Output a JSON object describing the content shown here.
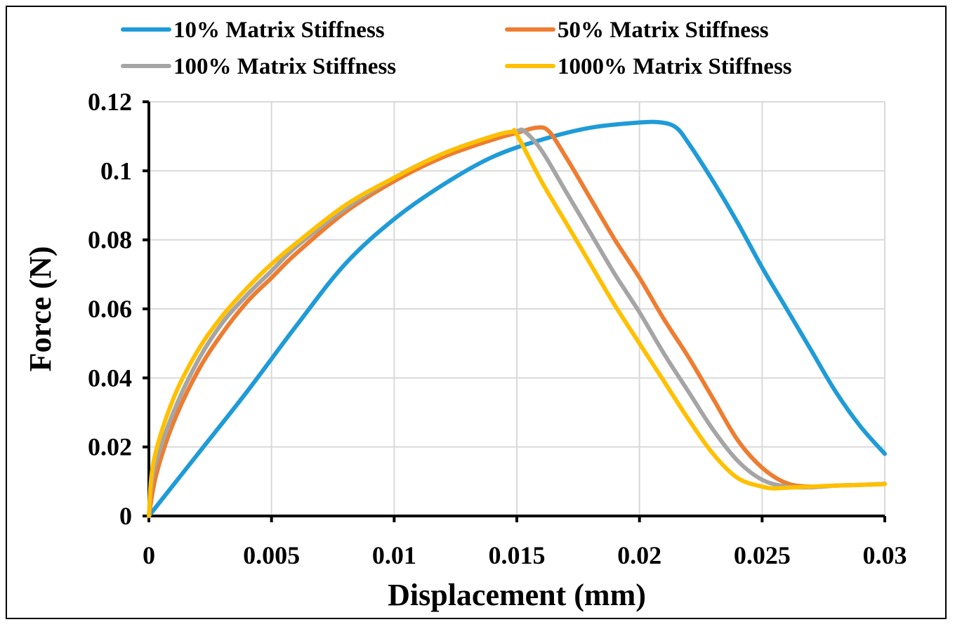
{
  "chart_data": {
    "type": "line",
    "title": "",
    "xlabel": "Displacement (mm)",
    "ylabel": "Force (N)",
    "xlim": [
      0,
      0.03
    ],
    "ylim": [
      0,
      0.12
    ],
    "x_ticks": [
      0,
      0.005,
      0.01,
      0.015,
      0.02,
      0.025,
      0.03
    ],
    "x_tick_labels": [
      "0",
      "0.005",
      "0.01",
      "0.015",
      "0.02",
      "0.025",
      "0.03"
    ],
    "y_ticks": [
      0,
      0.02,
      0.04,
      0.06,
      0.08,
      0.1,
      0.12
    ],
    "y_tick_labels": [
      "0",
      "0.02",
      "0.04",
      "0.06",
      "0.08",
      "0.1",
      "0.12"
    ],
    "grid": true,
    "legend_position": "top",
    "series": [
      {
        "name": "10% Matrix Stiffness",
        "color": "#1f9bd7",
        "x": [
          0,
          0.002,
          0.004,
          0.006,
          0.008,
          0.01,
          0.012,
          0.014,
          0.016,
          0.018,
          0.02,
          0.0209,
          0.0215,
          0.022,
          0.023,
          0.024,
          0.025,
          0.026,
          0.027,
          0.028,
          0.029,
          0.03
        ],
        "y": [
          0,
          0.018,
          0.036,
          0.055,
          0.073,
          0.086,
          0.096,
          0.104,
          0.109,
          0.1125,
          0.114,
          0.114,
          0.1125,
          0.108,
          0.097,
          0.085,
          0.072,
          0.06,
          0.048,
          0.036,
          0.026,
          0.018
        ]
      },
      {
        "name": "50% Matrix Stiffness",
        "color": "#ed7d31",
        "x": [
          0,
          0.0003,
          0.001,
          0.002,
          0.003,
          0.004,
          0.005,
          0.006,
          0.008,
          0.01,
          0.012,
          0.014,
          0.015,
          0.0158,
          0.0163,
          0.017,
          0.018,
          0.019,
          0.02,
          0.021,
          0.022,
          0.023,
          0.024,
          0.025,
          0.026,
          0.027,
          0.028,
          0.029,
          0.03
        ],
        "y": [
          0,
          0.012,
          0.027,
          0.042,
          0.053,
          0.062,
          0.069,
          0.076,
          0.088,
          0.097,
          0.104,
          0.109,
          0.111,
          0.1125,
          0.1115,
          0.104,
          0.092,
          0.08,
          0.069,
          0.057,
          0.046,
          0.034,
          0.022,
          0.014,
          0.0095,
          0.0085,
          0.0088,
          0.009,
          0.0093
        ]
      },
      {
        "name": "100% Matrix Stiffness",
        "color": "#a5a5a5",
        "x": [
          0,
          0.0002,
          0.001,
          0.002,
          0.003,
          0.004,
          0.005,
          0.006,
          0.008,
          0.01,
          0.012,
          0.014,
          0.015,
          0.0153,
          0.016,
          0.017,
          0.018,
          0.019,
          0.02,
          0.021,
          0.022,
          0.023,
          0.024,
          0.025,
          0.026,
          0.027,
          0.028,
          0.029,
          0.03
        ],
        "y": [
          0,
          0.013,
          0.03,
          0.045,
          0.056,
          0.064,
          0.071,
          0.078,
          0.089,
          0.098,
          0.105,
          0.11,
          0.1115,
          0.1115,
          0.106,
          0.094,
          0.082,
          0.07,
          0.059,
          0.047,
          0.036,
          0.025,
          0.016,
          0.0105,
          0.0085,
          0.0083,
          0.0088,
          0.009,
          0.0093
        ]
      },
      {
        "name": "1000% Matrix Stiffness",
        "color": "#ffc000",
        "x": [
          0,
          0.0002,
          0.001,
          0.002,
          0.003,
          0.004,
          0.005,
          0.006,
          0.008,
          0.01,
          0.012,
          0.014,
          0.0148,
          0.015,
          0.016,
          0.017,
          0.018,
          0.019,
          0.02,
          0.021,
          0.022,
          0.023,
          0.024,
          0.025,
          0.0255,
          0.026,
          0.027,
          0.028,
          0.029,
          0.03
        ],
        "y": [
          0,
          0.016,
          0.034,
          0.048,
          0.058,
          0.066,
          0.073,
          0.079,
          0.09,
          0.098,
          0.105,
          0.11,
          0.1113,
          0.1105,
          0.097,
          0.085,
          0.073,
          0.061,
          0.05,
          0.039,
          0.028,
          0.018,
          0.011,
          0.0085,
          0.008,
          0.0082,
          0.0085,
          0.0088,
          0.009,
          0.0092
        ]
      }
    ]
  }
}
